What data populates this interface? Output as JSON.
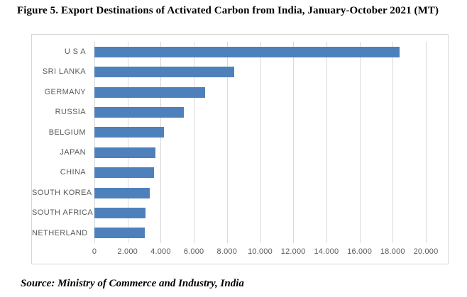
{
  "title": "Figure 5. Export Destinations of Activated Carbon from India, January-October 2021 (MT)",
  "source": "Source: Ministry of Commerce and Industry, India",
  "colors": {
    "bar": "#4E80BC",
    "gridline": "#D9D9D9",
    "axis_text": "#595959",
    "frame_border": "#D7D7D7",
    "title_text": "#000000"
  },
  "chart_data": {
    "type": "bar",
    "orientation": "horizontal",
    "title": "Figure 5. Export Destinations of Activated Carbon from India, January-October 2021 (MT)",
    "xlabel": "",
    "ylabel": "",
    "categories": [
      "U S A",
      "SRI LANKA",
      "GERMANY",
      "RUSSIA",
      "BELGIUM",
      "JAPAN",
      "CHINA",
      "SOUTH KOREA",
      "SOUTH AFRICA",
      "NETHERLAND"
    ],
    "values": [
      18400,
      8450,
      6700,
      5400,
      4200,
      3700,
      3600,
      3350,
      3100,
      3050
    ],
    "xlim": [
      0,
      20000
    ],
    "x_tick_values": [
      0,
      2000,
      4000,
      6000,
      8000,
      10000,
      12000,
      14000,
      16000,
      18000,
      20000
    ],
    "x_tick_labels": [
      "0",
      "2.000",
      "4.000",
      "6.000",
      "8.000",
      "10.000",
      "12.000",
      "14.000",
      "16.000",
      "18.000",
      "20.000"
    ],
    "grid": true,
    "legend": false,
    "unit": "MT"
  }
}
